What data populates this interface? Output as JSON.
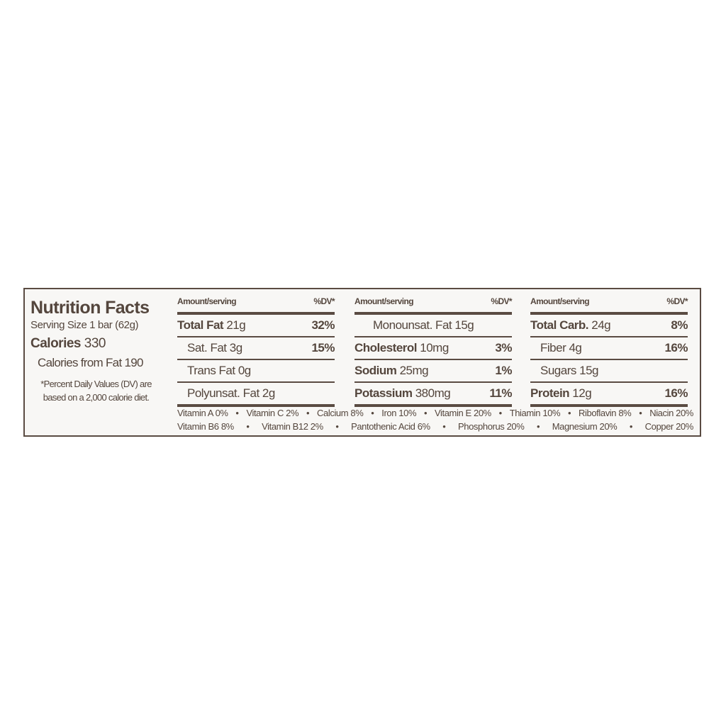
{
  "label": {
    "title": "Nutrition Facts",
    "serving_size": "Serving Size 1 bar (62g)",
    "calories_label": "Calories",
    "calories_value": "330",
    "calories_from_fat": "Calories from Fat 190",
    "footnote_line1": "*Percent Daily Values (DV) are",
    "footnote_line2": "based on a 2,000 calorie diet.",
    "columns": [
      {
        "header_amount": "Amount/serving",
        "header_dv": "%DV*",
        "rows": [
          {
            "name": "Total Fat",
            "amount": "21g",
            "dv": "32%",
            "bold": true,
            "indent": 0
          },
          {
            "name": "Sat. Fat",
            "amount": "3g",
            "dv": "15%",
            "bold": false,
            "indent": 1
          },
          {
            "name": "Trans Fat",
            "amount": "0g",
            "dv": "",
            "bold": false,
            "indent": 1
          },
          {
            "name": "Polyunsat. Fat",
            "amount": "2g",
            "dv": "",
            "bold": false,
            "indent": 1
          }
        ]
      },
      {
        "header_amount": "Amount/serving",
        "header_dv": "%DV*",
        "rows": [
          {
            "name": "Monounsat. Fat",
            "amount": "15g",
            "dv": "",
            "bold": false,
            "indent": 2
          },
          {
            "name": "Cholesterol",
            "amount": "10mg",
            "dv": "3%",
            "bold": true,
            "indent": 0
          },
          {
            "name": "Sodium",
            "amount": "25mg",
            "dv": "1%",
            "bold": true,
            "indent": 0
          },
          {
            "name": "Potassium",
            "amount": "380mg",
            "dv": "11%",
            "bold": true,
            "indent": 0
          }
        ]
      },
      {
        "header_amount": "Amount/serving",
        "header_dv": "%DV*",
        "rows": [
          {
            "name": "Total Carb.",
            "amount": "24g",
            "dv": "8%",
            "bold": true,
            "indent": 0
          },
          {
            "name": "Fiber",
            "amount": "4g",
            "dv": "16%",
            "bold": false,
            "indent": 1
          },
          {
            "name": "Sugars",
            "amount": "15g",
            "dv": "",
            "bold": false,
            "indent": 1
          },
          {
            "name": "Protein",
            "amount": "12g",
            "dv": "16%",
            "bold": true,
            "indent": 0
          }
        ]
      }
    ],
    "vitamins": [
      [
        "Vitamin A 0%",
        "Vitamin C 2%",
        "Calcium 8%",
        "Iron 10%",
        "Vitamin E 20%",
        "Thiamin 10%",
        "Riboflavin 8%",
        "Niacin 20%"
      ],
      [
        "Vitamin B6 8%",
        "Vitamin B12 2%",
        "Pantothenic Acid 6%",
        "Phosphorus 20%",
        "Magnesium 20%",
        "Copper 20%"
      ]
    ],
    "separator": "•",
    "colors": {
      "ink": "#54463d",
      "background": "#f8f7f5"
    }
  }
}
